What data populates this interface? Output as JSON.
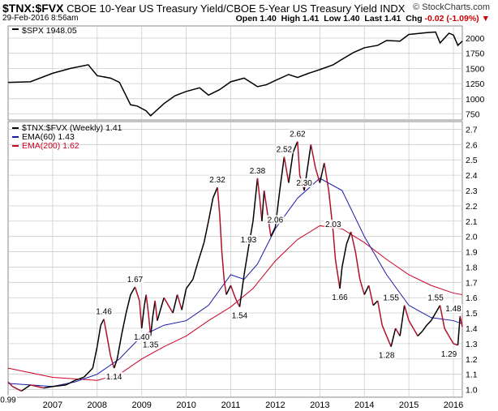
{
  "header": {
    "symbol": "$TNX:$FVX",
    "description": "CBOE 10-Year US Treasury Yield/CBOE 5-Year US Treasury Yield INDX",
    "brand": "© StockCharts.com",
    "date": "29-Feb-2016 8:56am",
    "open_label": "Open",
    "open": "1.40",
    "high_label": "High",
    "high": "1.41",
    "low_label": "Low",
    "low": "1.40",
    "last_label": "Last",
    "last": "1.41",
    "chg_label": "Chg",
    "chg": "-0.02 (-1.09%)",
    "chg_arrow": "▼"
  },
  "colors": {
    "price": "#000000",
    "price_down": "#b0102a",
    "ema60": "#1a1aa8",
    "ema200": "#cc0022",
    "grid": "#cccccc"
  },
  "chart_data": [
    {
      "type": "line",
      "legend": "$SPX 1948.05",
      "ylim": [
        650,
        2200
      ],
      "yticks": [
        750,
        1000,
        1250,
        1500,
        1750,
        2000
      ],
      "series": [
        {
          "name": "$SPX",
          "x": [
            2006.0,
            2006.5,
            2007.0,
            2007.4,
            2007.8,
            2008.0,
            2008.3,
            2008.5,
            2008.75,
            2008.9,
            2009.1,
            2009.2,
            2009.5,
            2009.75,
            2010.0,
            2010.3,
            2010.5,
            2010.75,
            2011.0,
            2011.3,
            2011.6,
            2011.8,
            2012.0,
            2012.3,
            2012.5,
            2012.75,
            2013.0,
            2013.3,
            2013.5,
            2013.75,
            2014.0,
            2014.3,
            2014.5,
            2014.8,
            2015.0,
            2015.4,
            2015.6,
            2015.7,
            2015.9,
            2016.0,
            2016.1,
            2016.2
          ],
          "values": [
            1270,
            1280,
            1420,
            1500,
            1560,
            1380,
            1340,
            1270,
            900,
            880,
            800,
            720,
            920,
            1050,
            1120,
            1180,
            1060,
            1150,
            1280,
            1340,
            1200,
            1230,
            1300,
            1400,
            1350,
            1420,
            1480,
            1560,
            1650,
            1760,
            1840,
            1880,
            1960,
            1950,
            2060,
            2090,
            2100,
            1920,
            2080,
            2050,
            1880,
            1948
          ]
        }
      ]
    },
    {
      "type": "line",
      "title": "$TNX:$FVX (Weekly) 1.41",
      "ylim": [
        0.95,
        2.75
      ],
      "yticks": [
        1.0,
        1.1,
        1.2,
        1.3,
        1.4,
        1.5,
        1.6,
        1.7,
        1.8,
        1.9,
        2.0,
        2.1,
        2.2,
        2.3,
        2.4,
        2.5,
        2.6,
        2.7
      ],
      "x_tick_labels": [
        "2007",
        "2008",
        "2009",
        "2010",
        "2011",
        "2012",
        "2013",
        "2014",
        "2015",
        "2016"
      ],
      "series": [
        {
          "name": "$TNX:$FVX (Weekly) 1.41",
          "x": [
            2006.0,
            2006.1,
            2006.3,
            2006.5,
            2006.8,
            2007.0,
            2007.3,
            2007.5,
            2007.7,
            2007.9,
            2008.0,
            2008.08,
            2008.15,
            2008.22,
            2008.3,
            2008.38,
            2008.45,
            2008.55,
            2008.65,
            2008.75,
            2008.85,
            2008.95,
            2009.0,
            2009.06,
            2009.1,
            2009.15,
            2009.2,
            2009.25,
            2009.3,
            2009.35,
            2009.5,
            2009.7,
            2009.8,
            2009.9,
            2010.0,
            2010.15,
            2010.25,
            2010.4,
            2010.5,
            2010.6,
            2010.7,
            2010.75,
            2010.8,
            2010.85,
            2010.9,
            2011.0,
            2011.1,
            2011.2,
            2011.3,
            2011.4,
            2011.5,
            2011.6,
            2011.65,
            2011.7,
            2011.75,
            2011.8,
            2011.9,
            2012.0,
            2012.1,
            2012.2,
            2012.3,
            2012.4,
            2012.5,
            2012.55,
            2012.65,
            2012.8,
            2012.9,
            2013.0,
            2013.1,
            2013.2,
            2013.3,
            2013.35,
            2013.45,
            2013.5,
            2013.6,
            2013.7,
            2013.8,
            2013.9,
            2014.0,
            2014.1,
            2014.2,
            2014.3,
            2014.4,
            2014.5,
            2014.6,
            2014.7,
            2014.8,
            2014.9,
            2015.0,
            2015.1,
            2015.2,
            2015.3,
            2015.4,
            2015.5,
            2015.6,
            2015.7,
            2015.8,
            2015.9,
            2016.0,
            2016.1,
            2016.15,
            2016.2
          ],
          "values": [
            1.05,
            1.02,
            0.99,
            1.03,
            1.01,
            1.02,
            1.03,
            1.06,
            1.08,
            1.14,
            1.28,
            1.42,
            1.46,
            1.35,
            1.22,
            1.14,
            1.2,
            1.36,
            1.5,
            1.62,
            1.67,
            1.58,
            1.4,
            1.55,
            1.62,
            1.5,
            1.35,
            1.48,
            1.58,
            1.45,
            1.6,
            1.5,
            1.62,
            1.52,
            1.66,
            1.72,
            1.82,
            1.96,
            2.1,
            2.25,
            2.32,
            2.15,
            1.9,
            1.72,
            1.62,
            1.68,
            1.6,
            1.54,
            1.75,
            1.93,
            2.1,
            2.38,
            2.25,
            2.1,
            2.3,
            2.2,
            2.0,
            2.06,
            2.3,
            2.52,
            2.35,
            2.55,
            2.62,
            2.4,
            2.3,
            2.6,
            2.45,
            2.35,
            2.48,
            2.3,
            2.03,
            1.85,
            1.66,
            1.8,
            1.95,
            2.03,
            1.9,
            1.72,
            1.62,
            1.68,
            1.55,
            1.58,
            1.42,
            1.35,
            1.28,
            1.4,
            1.35,
            1.55,
            1.45,
            1.4,
            1.35,
            1.38,
            1.42,
            1.45,
            1.5,
            1.55,
            1.4,
            1.35,
            1.3,
            1.29,
            1.48,
            1.41
          ]
        },
        {
          "name": "EMA(60) 1.43",
          "x": [
            2006.0,
            2006.5,
            2007.0,
            2007.5,
            2008.0,
            2008.5,
            2009.0,
            2009.5,
            2010.0,
            2010.5,
            2011.0,
            2011.3,
            2011.6,
            2012.0,
            2012.5,
            2013.0,
            2013.5,
            2014.0,
            2014.5,
            2015.0,
            2015.5,
            2016.0,
            2016.2
          ],
          "values": [
            1.04,
            1.03,
            1.02,
            1.05,
            1.1,
            1.2,
            1.35,
            1.42,
            1.45,
            1.55,
            1.75,
            1.72,
            1.82,
            2.05,
            2.25,
            2.38,
            2.3,
            2.0,
            1.75,
            1.55,
            1.47,
            1.45,
            1.43
          ]
        },
        {
          "name": "EMA(200) 1.62",
          "x": [
            2006.0,
            2007.0,
            2008.0,
            2008.5,
            2009.0,
            2009.5,
            2010.0,
            2010.5,
            2011.0,
            2011.5,
            2012.0,
            2012.5,
            2013.0,
            2013.5,
            2014.0,
            2014.5,
            2015.0,
            2015.5,
            2016.0,
            2016.2
          ],
          "values": [
            1.14,
            1.08,
            1.06,
            1.1,
            1.2,
            1.28,
            1.35,
            1.45,
            1.54,
            1.66,
            1.84,
            1.98,
            2.07,
            2.05,
            1.96,
            1.85,
            1.75,
            1.68,
            1.63,
            1.62
          ]
        }
      ],
      "annotations": [
        {
          "x": 2006.0,
          "y": 0.99,
          "text": "0.99"
        },
        {
          "x": 2008.15,
          "y": 1.46,
          "text": "1.46"
        },
        {
          "x": 2008.38,
          "y": 1.14,
          "text": "1.14"
        },
        {
          "x": 2008.85,
          "y": 1.67,
          "text": "1.67"
        },
        {
          "x": 2009.0,
          "y": 1.4,
          "text": "1.40"
        },
        {
          "x": 2009.2,
          "y": 1.35,
          "text": "1.35"
        },
        {
          "x": 2010.7,
          "y": 2.32,
          "text": "2.32"
        },
        {
          "x": 2011.2,
          "y": 1.54,
          "text": "1.54"
        },
        {
          "x": 2011.4,
          "y": 1.93,
          "text": "1.93"
        },
        {
          "x": 2011.6,
          "y": 2.38,
          "text": "2.38"
        },
        {
          "x": 2012.0,
          "y": 2.06,
          "text": "2.06"
        },
        {
          "x": 2012.2,
          "y": 2.52,
          "text": "2.52"
        },
        {
          "x": 2012.5,
          "y": 2.62,
          "text": "2.62"
        },
        {
          "x": 2012.65,
          "y": 2.3,
          "text": "2.30"
        },
        {
          "x": 2013.3,
          "y": 2.03,
          "text": "2.03"
        },
        {
          "x": 2013.45,
          "y": 1.66,
          "text": "1.66"
        },
        {
          "x": 2014.5,
          "y": 1.28,
          "text": "1.28"
        },
        {
          "x": 2014.6,
          "y": 1.55,
          "text": "1.55"
        },
        {
          "x": 2015.6,
          "y": 1.55,
          "text": "1.55"
        },
        {
          "x": 2015.9,
          "y": 1.29,
          "text": "1.29"
        },
        {
          "x": 2016.0,
          "y": 1.48,
          "text": "1.48"
        }
      ]
    }
  ]
}
